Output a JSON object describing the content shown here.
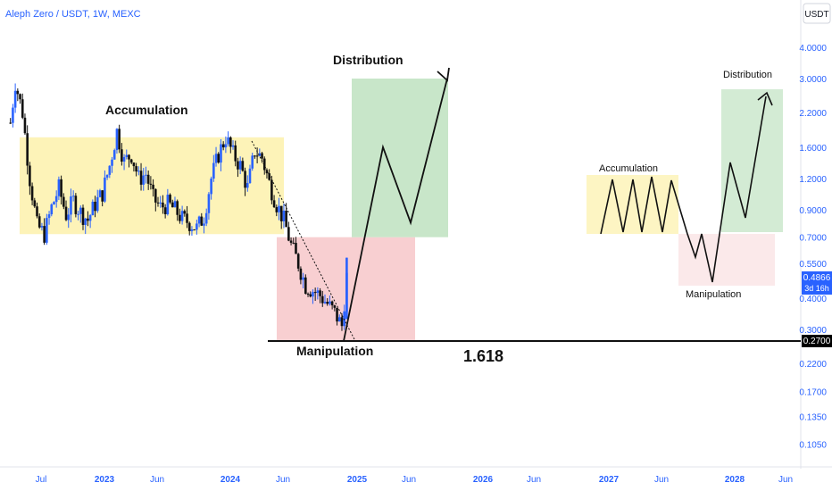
{
  "header": {
    "symbol": "Aleph Zero / USDT, 1W, MEXC",
    "currency_button": "USDT"
  },
  "colors": {
    "up": "#2962ff",
    "down": "#111111",
    "accumulation": "#fdf3b8",
    "manipulation": "#f8cfd1",
    "distribution": "#c8e6c9",
    "axis_text": "#2962ff"
  },
  "chart_data": {
    "type": "candlestick",
    "title": "Aleph Zero / USDT, 1W, MEXC",
    "y_scale": "log",
    "ylim": [
      0.085,
      5.0
    ],
    "y_ticks": [
      "4.0000",
      "3.0000",
      "2.2000",
      "1.6000",
      "1.2000",
      "0.9000",
      "0.7000",
      "0.5500",
      "0.4000",
      "0.3000",
      "0.2200",
      "0.1700",
      "0.1350",
      "0.1050"
    ],
    "x_ticks": [
      "Jul",
      "2023",
      "Jun",
      "2024",
      "Jun",
      "2025",
      "Jun",
      "2026",
      "Jun",
      "2027",
      "Jun",
      "2028",
      "Jun"
    ],
    "x_range": [
      "2022-04",
      "2028-06"
    ],
    "price_series": [
      [
        "2022-04-04",
        2.0
      ],
      [
        "2022-04-18",
        2.9
      ],
      [
        "2022-05-09",
        2.2
      ],
      [
        "2022-05-30",
        1.2
      ],
      [
        "2022-06-20",
        0.78
      ],
      [
        "2022-07-11",
        0.72
      ],
      [
        "2022-08-01",
        0.92
      ],
      [
        "2022-08-22",
        1.1
      ],
      [
        "2022-09-12",
        0.86
      ],
      [
        "2022-10-03",
        0.98
      ],
      [
        "2022-10-24",
        0.88
      ],
      [
        "2022-11-14",
        0.82
      ],
      [
        "2022-12-05",
        0.95
      ],
      [
        "2022-12-26",
        1.05
      ],
      [
        "2023-01-16",
        1.35
      ],
      [
        "2023-02-06",
        1.85
      ],
      [
        "2023-02-27",
        1.4
      ],
      [
        "2023-03-20",
        1.5
      ],
      [
        "2023-04-10",
        1.2
      ],
      [
        "2023-05-01",
        1.25
      ],
      [
        "2023-05-22",
        1.0
      ],
      [
        "2023-06-12",
        0.92
      ],
      [
        "2023-07-03",
        0.95
      ],
      [
        "2023-07-24",
        0.9
      ],
      [
        "2023-08-14",
        0.83
      ],
      [
        "2023-09-04",
        0.8
      ],
      [
        "2023-09-25",
        0.76
      ],
      [
        "2023-10-16",
        0.85
      ],
      [
        "2023-11-06",
        1.2
      ],
      [
        "2023-11-27",
        1.5
      ],
      [
        "2023-12-18",
        1.75
      ],
      [
        "2024-01-08",
        1.5
      ],
      [
        "2024-01-29",
        1.35
      ],
      [
        "2024-02-19",
        1.1
      ],
      [
        "2024-03-11",
        1.55
      ],
      [
        "2024-04-01",
        1.45
      ],
      [
        "2024-04-22",
        1.15
      ],
      [
        "2024-05-13",
        0.95
      ],
      [
        "2024-06-03",
        0.82
      ],
      [
        "2024-06-24",
        0.65
      ],
      [
        "2024-07-15",
        0.55
      ],
      [
        "2024-08-05",
        0.45
      ],
      [
        "2024-08-26",
        0.43
      ],
      [
        "2024-09-16",
        0.41
      ],
      [
        "2024-10-07",
        0.38
      ],
      [
        "2024-10-28",
        0.35
      ],
      [
        "2024-11-18",
        0.31
      ],
      [
        "2024-12-02",
        0.4866
      ]
    ],
    "last_price": "0.4866",
    "countdown": "3d 16h",
    "support_price": "0.2700",
    "zones": [
      {
        "label": "Accumulation",
        "kind": "accumulation",
        "from": "2022-04",
        "to": "2024-06",
        "low": 0.72,
        "high": 1.75
      },
      {
        "label": "Manipulation",
        "kind": "manipulation",
        "from": "2024-06",
        "to": "2025-01",
        "low": 0.27,
        "high": 0.7
      },
      {
        "label": "Distribution",
        "kind": "distribution",
        "from": "2025-01",
        "to": "2025-08",
        "low": 0.7,
        "high": 3.0
      }
    ],
    "projection_path": [
      [
        "2024-11-25",
        0.27
      ],
      [
        "2025-03-01",
        1.6
      ],
      [
        "2025-06-10",
        0.8
      ],
      [
        "2025-09-01",
        3.0
      ]
    ],
    "fib_level": "1.618",
    "schematic": {
      "accumulation_label": "Accumulation",
      "manipulation_label": "Manipulation",
      "distribution_label": "Distribution"
    }
  }
}
